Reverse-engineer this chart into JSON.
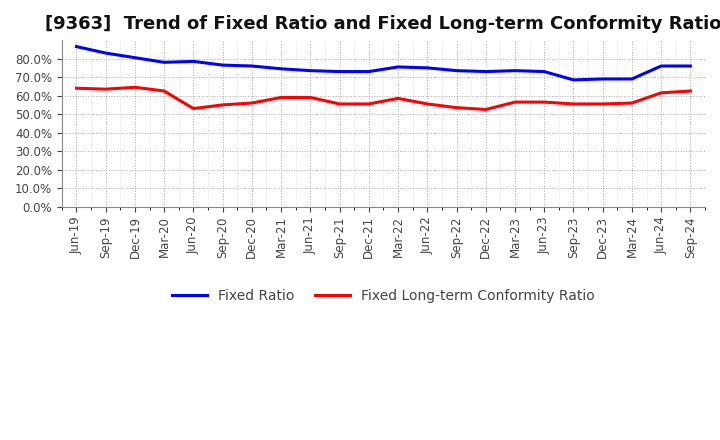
{
  "title": "[9363]  Trend of Fixed Ratio and Fixed Long-term Conformity Ratio",
  "x_labels": [
    "Jun-19",
    "Sep-19",
    "Dec-19",
    "Mar-20",
    "Jun-20",
    "Sep-20",
    "Dec-20",
    "Mar-21",
    "Jun-21",
    "Sep-21",
    "Dec-21",
    "Mar-22",
    "Jun-22",
    "Sep-22",
    "Dec-22",
    "Mar-23",
    "Jun-23",
    "Sep-23",
    "Dec-23",
    "Mar-24",
    "Jun-24",
    "Sep-24"
  ],
  "fixed_ratio": [
    86.5,
    83.0,
    80.5,
    78.0,
    78.5,
    76.5,
    76.0,
    74.5,
    73.5,
    73.0,
    73.0,
    75.5,
    75.0,
    73.5,
    73.0,
    73.5,
    73.0,
    68.5,
    69.0,
    69.0,
    76.0,
    76.0
  ],
  "fixed_lt_ratio": [
    64.0,
    63.5,
    64.5,
    62.5,
    53.0,
    55.0,
    56.0,
    59.0,
    59.0,
    55.5,
    55.5,
    58.5,
    55.5,
    53.5,
    52.5,
    56.5,
    56.5,
    55.5,
    55.5,
    56.0,
    61.5,
    62.5
  ],
  "blue_color": "#0000FF",
  "red_color": "#FF0000",
  "background_color": "#FFFFFF",
  "grid_color": "#888888",
  "ylim_max": 90,
  "yticks": [
    0,
    10,
    20,
    30,
    40,
    50,
    60,
    70,
    80
  ],
  "legend_fixed_ratio": "Fixed Ratio",
  "legend_fixed_lt_ratio": "Fixed Long-term Conformity Ratio",
  "title_fontsize": 13,
  "tick_fontsize": 8.5,
  "legend_fontsize": 10,
  "line_width": 2.2
}
